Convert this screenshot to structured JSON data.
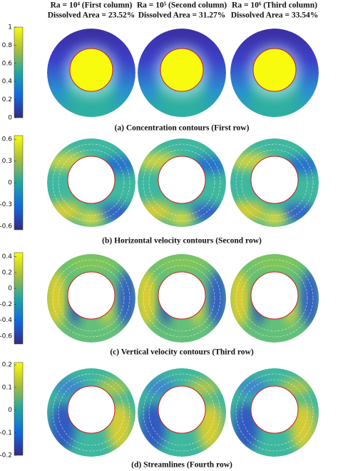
{
  "header": {
    "columns": [
      {
        "title": "Ra = 10⁴ (First column)",
        "area": "Dissolved Area = 23.52%"
      },
      {
        "title": "Ra = 10⁵ (Second column)",
        "area": "Dissolved Area = 31.27%"
      },
      {
        "title": "Ra = 10⁶ (Third column)",
        "area": "Dissolved Area = 33.54%"
      }
    ]
  },
  "rows": [
    {
      "caption": "(a) Concentration contours (First row)",
      "colorbar": {
        "lim": [
          0,
          1
        ],
        "ticks": [
          0,
          0.2,
          0.4,
          0.6,
          0.8,
          1
        ]
      }
    },
    {
      "caption": "(b) Horizontal velocity contours (Second row)",
      "colorbar": {
        "lim": [
          -0.65,
          0.65
        ],
        "ticks": [
          -0.6,
          -0.3,
          0,
          0.3,
          0.6
        ]
      }
    },
    {
      "caption": "(c) Vertical velocity contours (Third row)",
      "colorbar": {
        "lim": [
          -0.7,
          0.45
        ],
        "ticks": [
          -0.6,
          -0.4,
          -0.2,
          0,
          0.2,
          0.4
        ]
      }
    },
    {
      "caption": "(d) Streamlines (Fourth row)",
      "colorbar": {
        "lim": [
          -0.2,
          0.21
        ],
        "ticks": [
          -0.2,
          -0.1,
          0,
          0.1,
          0.2
        ]
      }
    }
  ]
}
